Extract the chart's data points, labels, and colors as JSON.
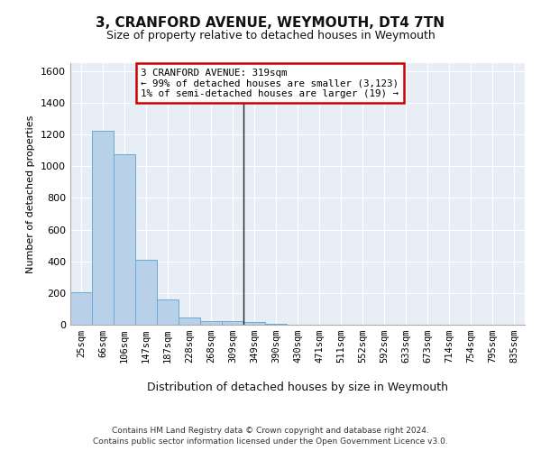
{
  "title": "3, CRANFORD AVENUE, WEYMOUTH, DT4 7TN",
  "subtitle": "Size of property relative to detached houses in Weymouth",
  "xlabel": "Distribution of detached houses by size in Weymouth",
  "ylabel": "Number of detached properties",
  "categories": [
    "25sqm",
    "66sqm",
    "106sqm",
    "147sqm",
    "187sqm",
    "228sqm",
    "268sqm",
    "309sqm",
    "349sqm",
    "390sqm",
    "430sqm",
    "471sqm",
    "511sqm",
    "552sqm",
    "592sqm",
    "633sqm",
    "673sqm",
    "714sqm",
    "754sqm",
    "795sqm",
    "835sqm"
  ],
  "values": [
    205,
    1225,
    1075,
    410,
    160,
    45,
    25,
    20,
    15,
    5,
    0,
    0,
    0,
    0,
    0,
    0,
    0,
    0,
    0,
    0,
    0
  ],
  "bar_color": "#b8d0e8",
  "bar_edge_color": "#6aaad4",
  "vline_index": 7.5,
  "vline_color": "#222222",
  "annotation_text_line1": "3 CRANFORD AVENUE: 319sqm",
  "annotation_text_line2": "← 99% of detached houses are smaller (3,123)",
  "annotation_text_line3": "1% of semi-detached houses are larger (19) →",
  "annotation_box_color": "#cc0000",
  "ylim": [
    0,
    1650
  ],
  "yticks": [
    0,
    200,
    400,
    600,
    800,
    1000,
    1200,
    1400,
    1600
  ],
  "bg_color": "#e8eef6",
  "grid_color": "#ffffff",
  "footer_line1": "Contains HM Land Registry data © Crown copyright and database right 2024.",
  "footer_line2": "Contains public sector information licensed under the Open Government Licence v3.0."
}
